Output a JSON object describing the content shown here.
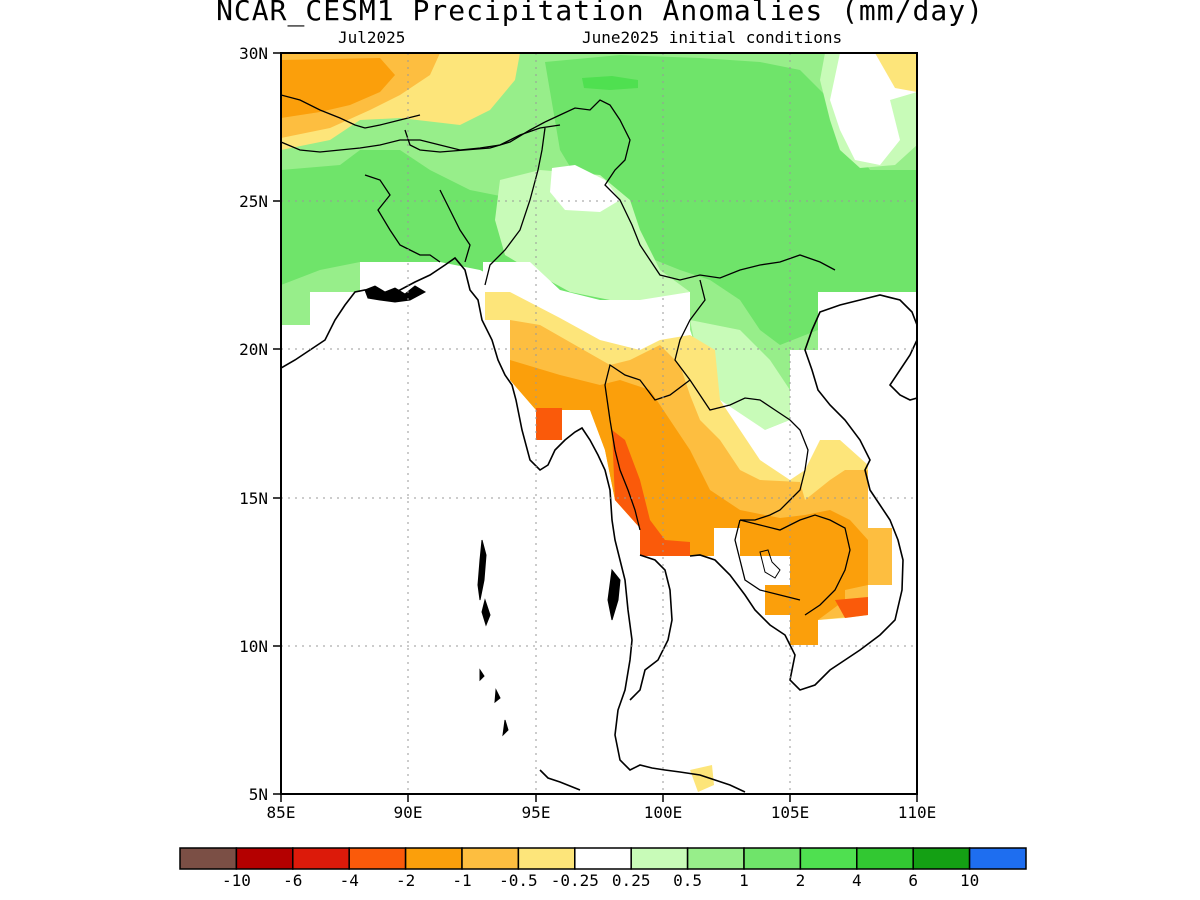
{
  "title": "NCAR_CESM1 Precipitation Anomalies (mm/day)",
  "subtitle_left": "Jul2025",
  "subtitle_right": "June2025 initial conditions",
  "axes": {
    "lat_ticks": [
      "30N",
      "25N",
      "20N",
      "15N",
      "10N",
      "5N"
    ],
    "lon_ticks": [
      "85E",
      "90E",
      "95E",
      "100E",
      "105E",
      "110E"
    ],
    "lat_range": [
      5,
      30
    ],
    "lon_range": [
      85,
      110
    ],
    "grid": true
  },
  "colorbar": {
    "colors": [
      "#7b4f45",
      "#b40000",
      "#dc1a0a",
      "#fa5a0a",
      "#fb9f0b",
      "#fdbe40",
      "#fde57a",
      "#ffffff",
      "#c8fbb8",
      "#97ee8a",
      "#6fe46a",
      "#4fe050",
      "#32c832",
      "#14a014",
      "#1e6ef0"
    ],
    "labels": [
      "-10",
      "-6",
      "-4",
      "-2",
      "-1",
      "-0.5",
      "-0.25",
      "0.25",
      "0.5",
      "1",
      "2",
      "4",
      "6",
      "10"
    ]
  },
  "map_data": {
    "variable": "Precipitation anomaly",
    "units": "mm/day",
    "valid": "Jul2025",
    "model": "NCAR_CESM1"
  }
}
